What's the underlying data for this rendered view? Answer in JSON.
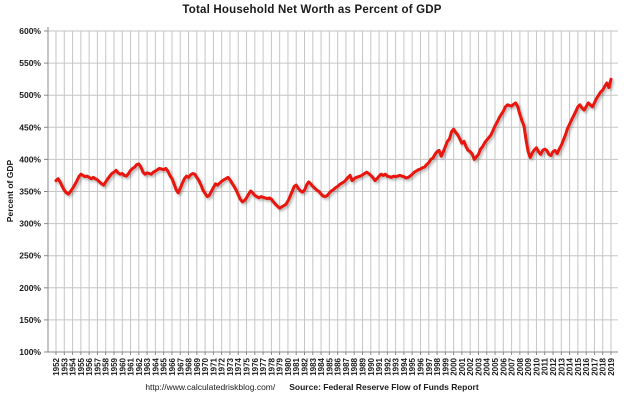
{
  "chart_data": {
    "type": "line",
    "title": "Total Household Net Worth as Percent of GDP",
    "ylabel": "Percent of GDP",
    "xlabel": "",
    "y_ticks": [
      "100%",
      "150%",
      "200%",
      "250%",
      "300%",
      "350%",
      "400%",
      "450%",
      "500%",
      "550%",
      "600%"
    ],
    "y_tick_values": [
      100,
      150,
      200,
      250,
      300,
      350,
      400,
      450,
      500,
      550,
      600
    ],
    "ylim": [
      100,
      600
    ],
    "x_tick_labels": [
      "1952",
      "1953",
      "1954",
      "1955",
      "1956",
      "1957",
      "1958",
      "1959",
      "1960",
      "1961",
      "1962",
      "1963",
      "1964",
      "1965",
      "1966",
      "1967",
      "1968",
      "1969",
      "1970",
      "1971",
      "1972",
      "1973",
      "1974",
      "1975",
      "1976",
      "1977",
      "1978",
      "1979",
      "1980",
      "1981",
      "1982",
      "1983",
      "1984",
      "1985",
      "1986",
      "1987",
      "1988",
      "1989",
      "1990",
      "1991",
      "1992",
      "1993",
      "1994",
      "1995",
      "1996",
      "1997",
      "1998",
      "1999",
      "2000",
      "2001",
      "2002",
      "2003",
      "2004",
      "2005",
      "2006",
      "2007",
      "2008",
      "2009",
      "2010",
      "2011",
      "2012",
      "2013",
      "2014",
      "2015",
      "2016",
      "2017",
      "2018",
      "2019"
    ],
    "x_start_year": 1952,
    "x_end_year": 2019,
    "points_per_year": 4,
    "grid": "both",
    "legend": "none",
    "line_color": "#e8140f",
    "gridline_color": "#c6c6c6",
    "axis_color": "#8a8a8a",
    "series": [
      {
        "name": "Household Net Worth as Percent of GDP (quarterly)",
        "values": [
          367,
          370,
          365,
          358,
          352,
          348,
          346,
          350,
          355,
          360,
          366,
          373,
          377,
          375,
          373,
          374,
          372,
          370,
          372,
          370,
          368,
          365,
          362,
          360,
          365,
          370,
          374,
          378,
          380,
          383,
          379,
          377,
          378,
          375,
          374,
          378,
          383,
          386,
          388,
          392,
          393,
          388,
          380,
          377,
          379,
          378,
          377,
          380,
          382,
          384,
          386,
          385,
          384,
          386,
          382,
          375,
          370,
          362,
          353,
          348,
          355,
          363,
          370,
          374,
          372,
          376,
          378,
          377,
          372,
          367,
          360,
          352,
          347,
          342,
          344,
          350,
          356,
          362,
          360,
          363,
          366,
          368,
          370,
          372,
          368,
          363,
          358,
          352,
          345,
          338,
          334,
          336,
          340,
          346,
          351,
          348,
          344,
          342,
          340,
          342,
          341,
          340,
          339,
          340,
          338,
          334,
          330,
          327,
          324,
          326,
          328,
          330,
          335,
          342,
          350,
          358,
          360,
          355,
          351,
          349,
          352,
          360,
          365,
          362,
          358,
          355,
          352,
          350,
          346,
          343,
          342,
          344,
          348,
          351,
          353,
          356,
          358,
          361,
          363,
          365,
          368,
          372,
          375,
          367,
          370,
          372,
          373,
          374,
          376,
          378,
          380,
          378,
          375,
          372,
          367,
          370,
          374,
          377,
          375,
          377,
          374,
          373,
          372,
          374,
          373,
          374,
          375,
          374,
          373,
          371,
          372,
          374,
          377,
          380,
          382,
          384,
          385,
          387,
          388,
          392,
          395,
          400,
          402,
          408,
          412,
          414,
          405,
          412,
          420,
          428,
          432,
          443,
          447,
          442,
          438,
          432,
          425,
          428,
          420,
          414,
          412,
          408,
          400,
          404,
          408,
          416,
          420,
          426,
          430,
          434,
          438,
          445,
          452,
          458,
          465,
          470,
          475,
          482,
          485,
          484,
          483,
          486,
          488,
          482,
          470,
          460,
          452,
          430,
          412,
          403,
          410,
          415,
          418,
          412,
          408,
          414,
          416,
          414,
          408,
          406,
          412,
          414,
          409,
          416,
          422,
          430,
          438,
          448,
          455,
          462,
          468,
          475,
          482,
          485,
          480,
          477,
          482,
          488,
          485,
          482,
          488,
          495,
          500,
          505,
          508,
          514,
          519,
          512,
          525
        ]
      }
    ],
    "footer": {
      "url": "http://www.calculatedriskblog.com/",
      "source": "Source: Federal Reserve Flow of Funds Report"
    }
  }
}
